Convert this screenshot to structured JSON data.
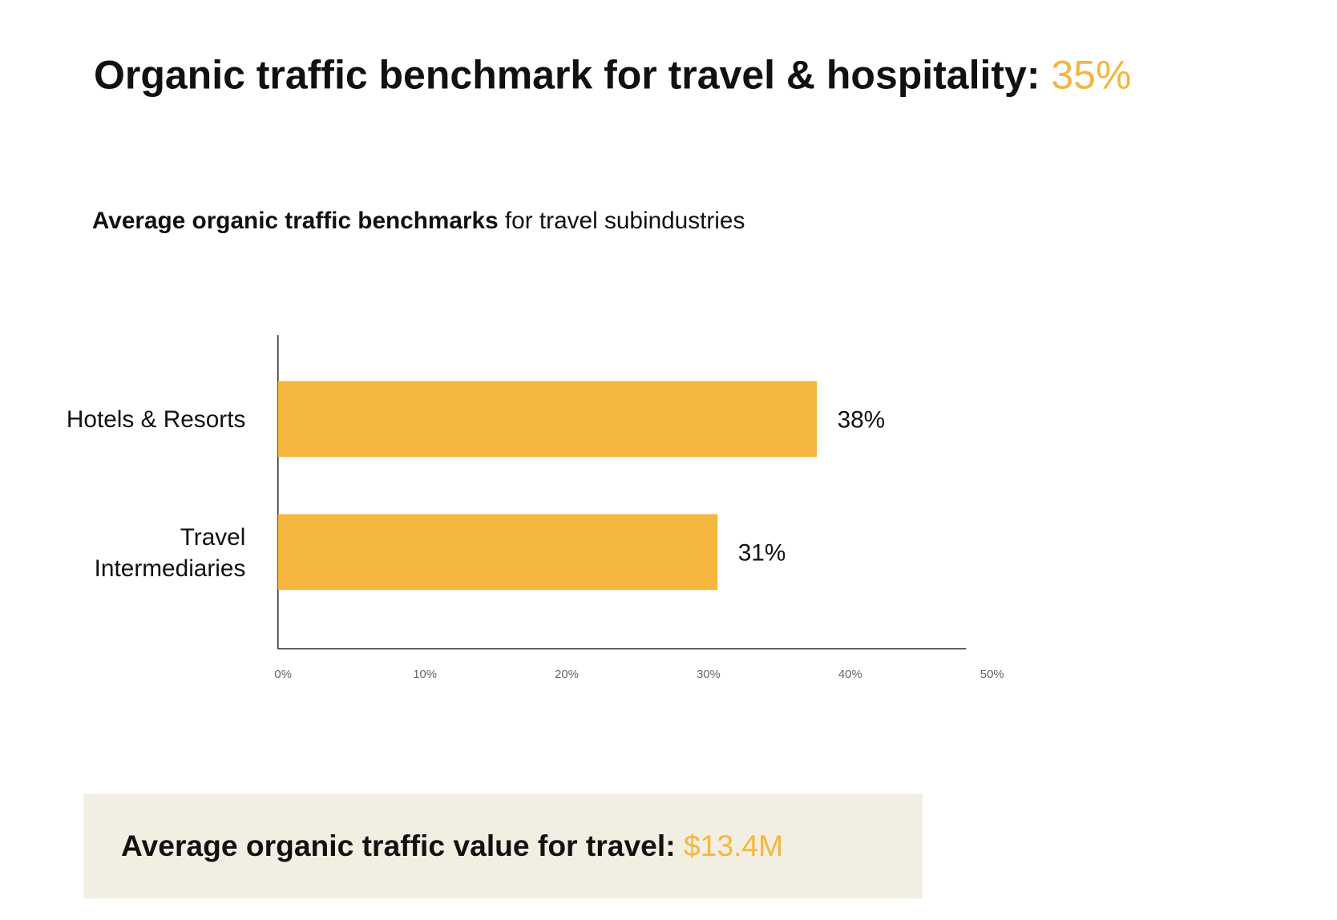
{
  "header": {
    "title": "Organic traffic benchmark for travel & hospitality: ",
    "title_highlight": "35%"
  },
  "chart_data": {
    "type": "bar",
    "orientation": "horizontal",
    "subtitle_bold": "Average organic traffic benchmarks",
    "subtitle": " for travel subindustries",
    "categories": [
      "Hotels & Resorts",
      "Travel Intermediaries"
    ],
    "values": [
      38,
      31
    ],
    "value_labels": [
      "38%",
      "31%"
    ],
    "color": "#f4b63f",
    "xlim": [
      0,
      50
    ],
    "xticks": [
      {
        "value": 0,
        "label": "0%"
      },
      {
        "value": 10,
        "label": "10%"
      },
      {
        "value": 20,
        "label": "20%"
      },
      {
        "value": 30,
        "label": "30%"
      },
      {
        "value": 40,
        "label": "40%"
      },
      {
        "value": 50,
        "label": "50%"
      }
    ],
    "grid": false
  },
  "footer": {
    "text": "Average organic traffic value for travel: ",
    "highlight": "$13.4M"
  }
}
